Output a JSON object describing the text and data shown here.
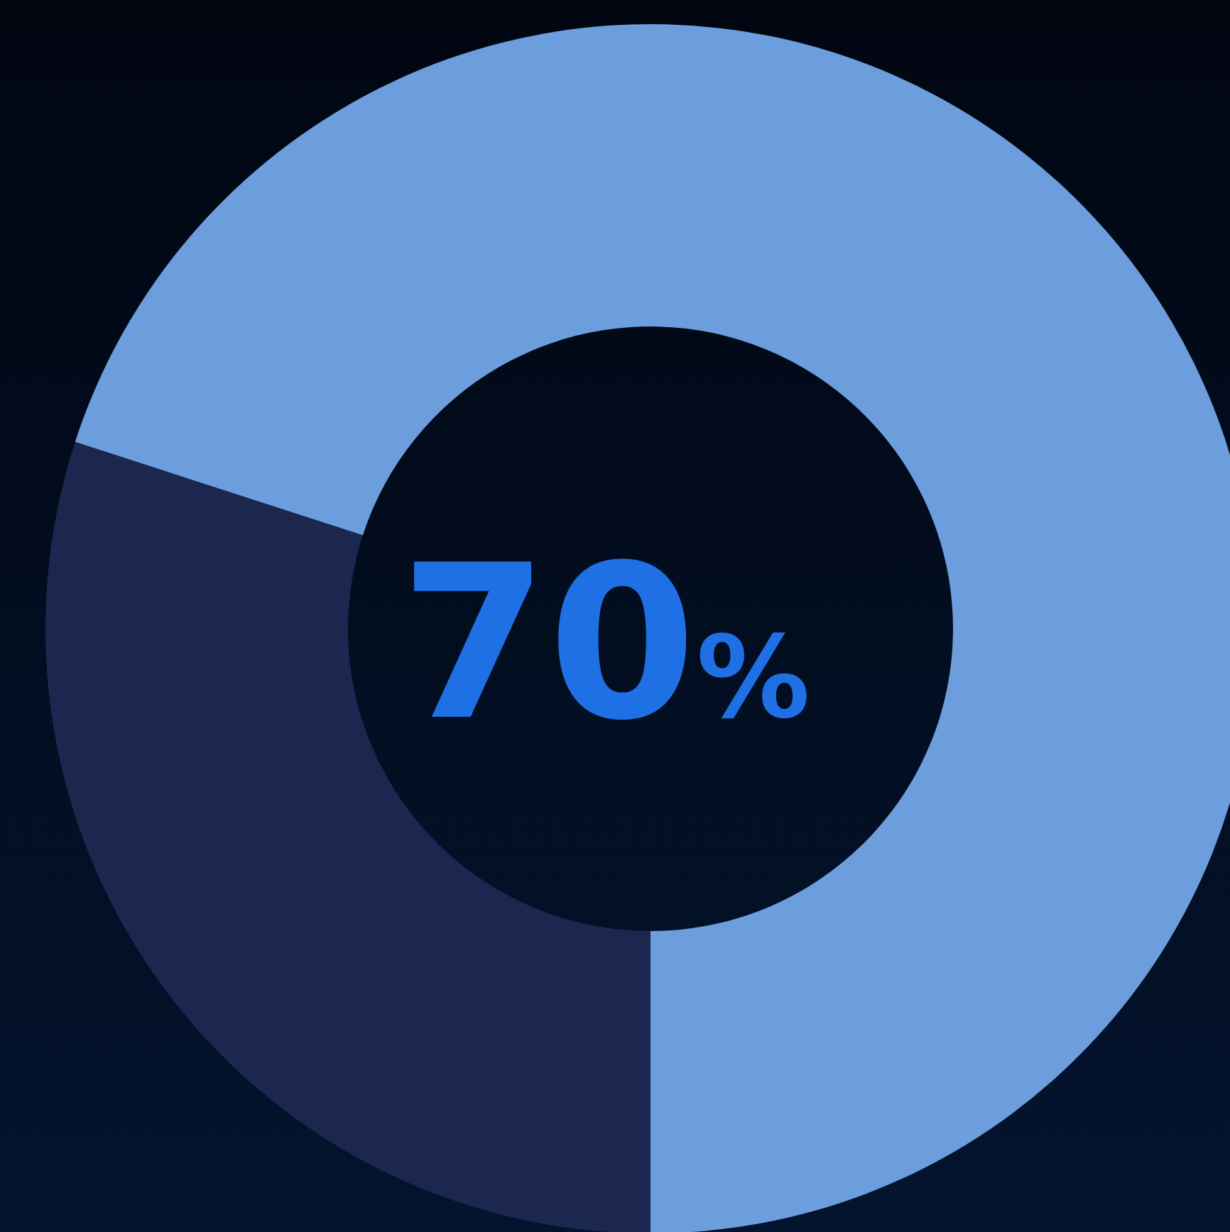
{
  "chart_data": {
    "type": "donut",
    "categories": [
      null,
      null
    ],
    "values": [
      70,
      30
    ],
    "colors": [
      "#6c9ddc",
      "#1c2750"
    ],
    "annotations": [
      "70%"
    ]
  }
}
